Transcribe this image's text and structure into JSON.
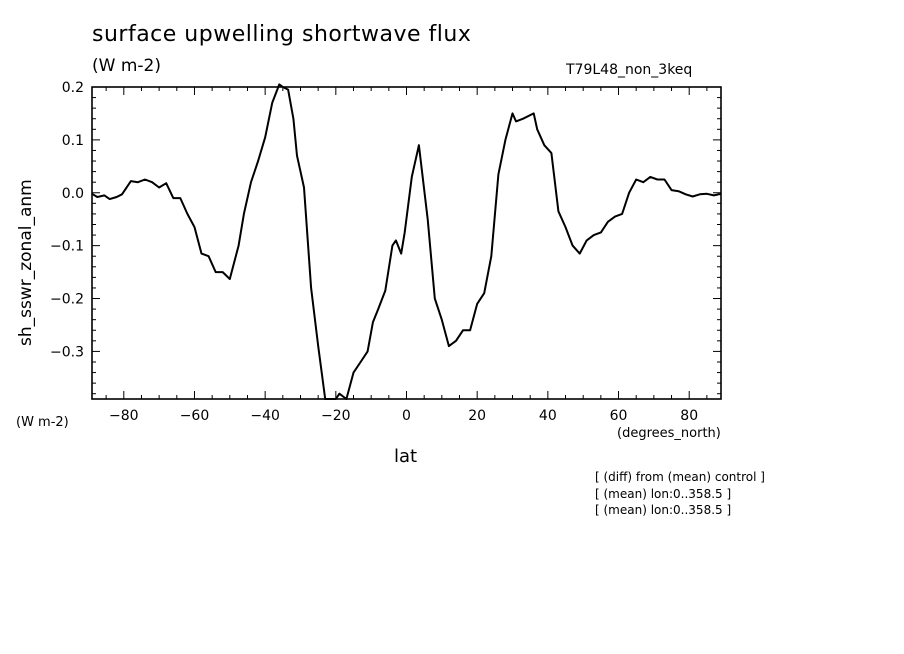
{
  "chart_data": {
    "type": "line",
    "title": "surface upwelling shortwave flux",
    "units": "(W m-2)",
    "run_label": "T79L48_non_3keq",
    "xlabel": "lat",
    "x_units": "(degrees_north)",
    "ylabel": "sh_sswr_zonal_anm",
    "y_units": "(W m-2)",
    "xlim": [
      -89,
      89
    ],
    "ylim": [
      -0.39,
      0.2
    ],
    "xticks": [
      -80,
      -60,
      -40,
      -20,
      0,
      20,
      40,
      60,
      80
    ],
    "yticks": [
      0.2,
      0.1,
      0.0,
      -0.1,
      -0.2,
      -0.3
    ],
    "ytick_labels": [
      "0.2",
      "0.1",
      "0.0",
      "−0.1",
      "−0.2",
      "−0.3"
    ],
    "xtick_labels": [
      "−80",
      "−60",
      "−40",
      "−20",
      "0",
      "20",
      "40",
      "60",
      "80"
    ],
    "grid": false,
    "notes": [
      "[ (diff) from (mean) control ]",
      "[ (mean) lon:0..358.5 ]",
      "[ (mean) lon:0..358.5 ]"
    ],
    "series": [
      {
        "x": [
          -89,
          -87.5,
          -85.5,
          -84,
          -82,
          -80.5,
          -78,
          -76,
          -74,
          -72,
          -70,
          -68,
          -66,
          -64,
          -62,
          -60,
          -58,
          -56,
          -54,
          -52,
          -50,
          -47.5,
          -46,
          -44,
          -42,
          -40,
          -38,
          -36,
          -35,
          -33.5,
          -32,
          -31,
          -29,
          -27,
          -25,
          -23,
          -21,
          -20,
          -19,
          -17,
          -15,
          -13,
          -11,
          -9.5,
          -8,
          -6,
          -4,
          -3,
          -1.5,
          -0.5,
          1.5,
          3.5,
          6,
          8,
          10,
          12,
          14,
          16,
          18,
          20,
          22,
          24,
          26,
          28,
          30,
          31,
          33,
          36,
          37,
          39,
          41,
          43,
          45,
          47,
          49,
          51,
          53,
          55,
          57,
          59,
          61,
          63,
          65,
          67,
          69,
          71,
          73,
          75,
          77,
          79,
          81,
          83,
          85,
          87,
          89
        ],
        "y": [
          -0.002,
          -0.008,
          -0.005,
          -0.012,
          -0.008,
          -0.003,
          0.022,
          0.02,
          0.025,
          0.02,
          0.01,
          0.018,
          -0.01,
          -0.01,
          -0.04,
          -0.065,
          -0.115,
          -0.12,
          -0.15,
          -0.15,
          -0.163,
          -0.1,
          -0.04,
          0.02,
          0.06,
          0.105,
          0.17,
          0.205,
          0.2,
          0.195,
          0.14,
          0.07,
          0.01,
          -0.18,
          -0.29,
          -0.39,
          -0.39,
          -0.39,
          -0.38,
          -0.39,
          -0.34,
          -0.32,
          -0.3,
          -0.245,
          -0.22,
          -0.185,
          -0.1,
          -0.09,
          -0.115,
          -0.075,
          0.03,
          0.09,
          -0.05,
          -0.2,
          -0.24,
          -0.29,
          -0.28,
          -0.26,
          -0.26,
          -0.21,
          -0.19,
          -0.12,
          0.035,
          0.1,
          0.15,
          0.135,
          0.14,
          0.15,
          0.12,
          0.09,
          0.075,
          -0.035,
          -0.065,
          -0.1,
          -0.115,
          -0.09,
          -0.08,
          -0.075,
          -0.055,
          -0.045,
          -0.04,
          0.0,
          0.025,
          0.02,
          0.03,
          0.025,
          0.025,
          0.005,
          0.003,
          -0.003,
          -0.007,
          -0.003,
          -0.002,
          -0.005,
          -0.002
        ]
      }
    ]
  }
}
